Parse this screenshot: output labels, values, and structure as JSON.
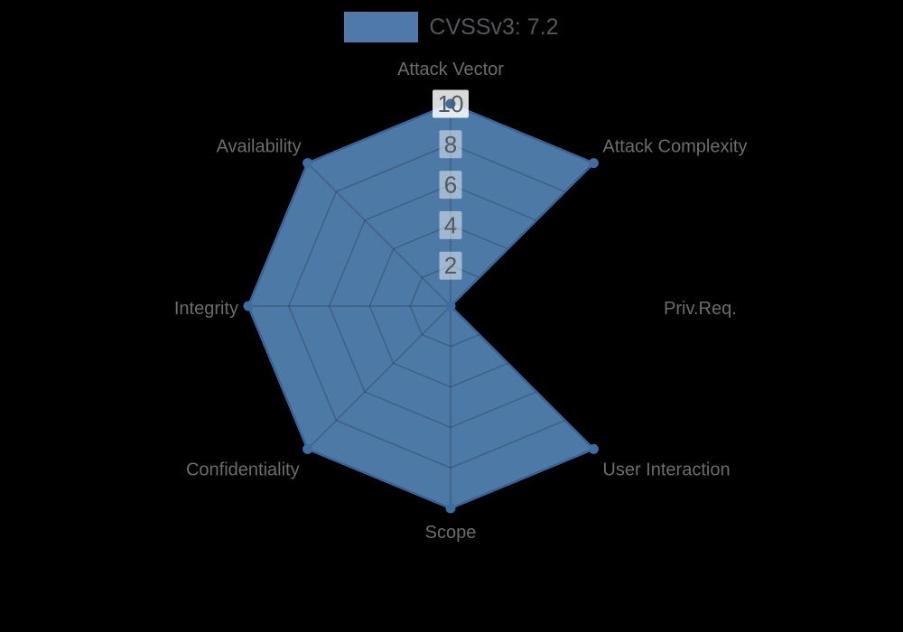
{
  "chart_data": {
    "type": "radar",
    "legend": [
      {
        "label": "CVSSv3: 7.2",
        "color": "#4e79a8"
      }
    ],
    "legend_position": "top-center",
    "axes": [
      "Attack Vector",
      "Attack Complexity",
      "Priv.Req.",
      "User Interaction",
      "Scope",
      "Confidentiality",
      "Integrity",
      "Availability"
    ],
    "series": [
      {
        "name": "CVSSv3: 7.2",
        "values": [
          10,
          10,
          0,
          10,
          10,
          10,
          10,
          10
        ]
      }
    ],
    "ticks": [
      2,
      4,
      6,
      8,
      10
    ],
    "range": [
      0,
      10
    ],
    "grid": true
  },
  "colors": {
    "background": "#000000",
    "series_fill": "#4d79a6",
    "series_line": "#3e6da1",
    "marker": "#3e6da1",
    "grid_line": "rgba(20,30,45,0.28)",
    "tick_box": "rgba(255,255,255,0.47)",
    "tick_box_max": "rgba(255,255,255,0.85)",
    "tick_text": "#53595f",
    "axis_label": "#6a6c6e",
    "legend_text": "#54575a"
  }
}
